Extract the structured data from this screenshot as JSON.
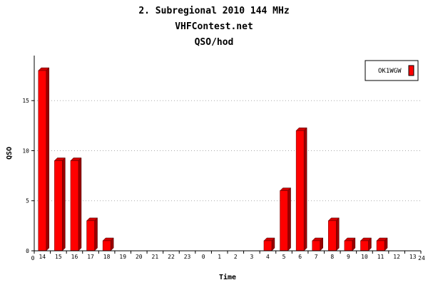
{
  "chart_data": {
    "type": "bar",
    "title_lines": [
      "2. Subregional 2010 144 MHz",
      "VHFContest.net",
      "QSO/hod"
    ],
    "xlabel": "Time",
    "ylabel": "QSO",
    "x_edge_labels": [
      "0",
      "24"
    ],
    "categories": [
      "14",
      "15",
      "16",
      "17",
      "18",
      "19",
      "20",
      "21",
      "22",
      "23",
      "0",
      "1",
      "2",
      "3",
      "4",
      "5",
      "6",
      "7",
      "8",
      "9",
      "10",
      "11",
      "12",
      "13"
    ],
    "series": [
      {
        "name": "OK1WGW",
        "color": "#ff0000",
        "values": [
          18,
          9,
          9,
          3,
          1,
          0,
          0,
          0,
          0,
          0,
          0,
          0,
          0,
          0,
          1,
          6,
          12,
          1,
          3,
          1,
          1,
          1,
          0,
          0
        ]
      }
    ],
    "yticks": [
      0,
      5,
      10,
      15
    ],
    "ylim": [
      0,
      19.5
    ],
    "grid": "horizontal-dotted",
    "legend_position": "top-right"
  }
}
